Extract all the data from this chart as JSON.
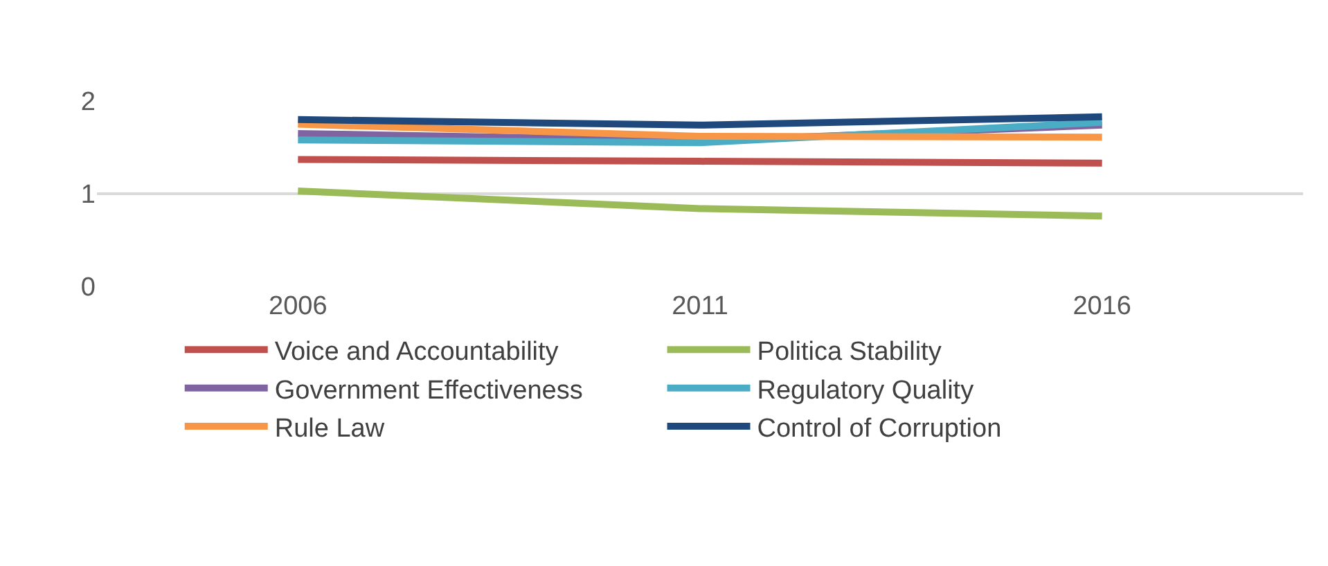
{
  "chart_data": {
    "type": "line",
    "categories": [
      "2006",
      "2011",
      "2016"
    ],
    "ylim": [
      0,
      2
    ],
    "yticks": [
      0,
      1,
      2
    ],
    "grid": "y",
    "legend": "bottom",
    "marker": "none",
    "line_style": "solid",
    "series": [
      {
        "name": "Voice and Accountability",
        "color": "#c0504d",
        "values": [
          1.37,
          1.35,
          1.33
        ]
      },
      {
        "name": "Politica Stability",
        "color": "#9bbb59",
        "values": [
          1.03,
          0.84,
          0.76
        ]
      },
      {
        "name": "Government Effectiveness",
        "color": "#8064a2",
        "values": [
          1.65,
          1.57,
          1.74
        ]
      },
      {
        "name": "Regulatory Quality",
        "color": "#4bacc6",
        "values": [
          1.58,
          1.55,
          1.77
        ]
      },
      {
        "name": "Rule Law",
        "color": "#f79646",
        "values": [
          1.75,
          1.62,
          1.61
        ]
      },
      {
        "name": "Control of Corruption",
        "color": "#1f497d",
        "values": [
          1.8,
          1.74,
          1.83
        ]
      }
    ]
  }
}
